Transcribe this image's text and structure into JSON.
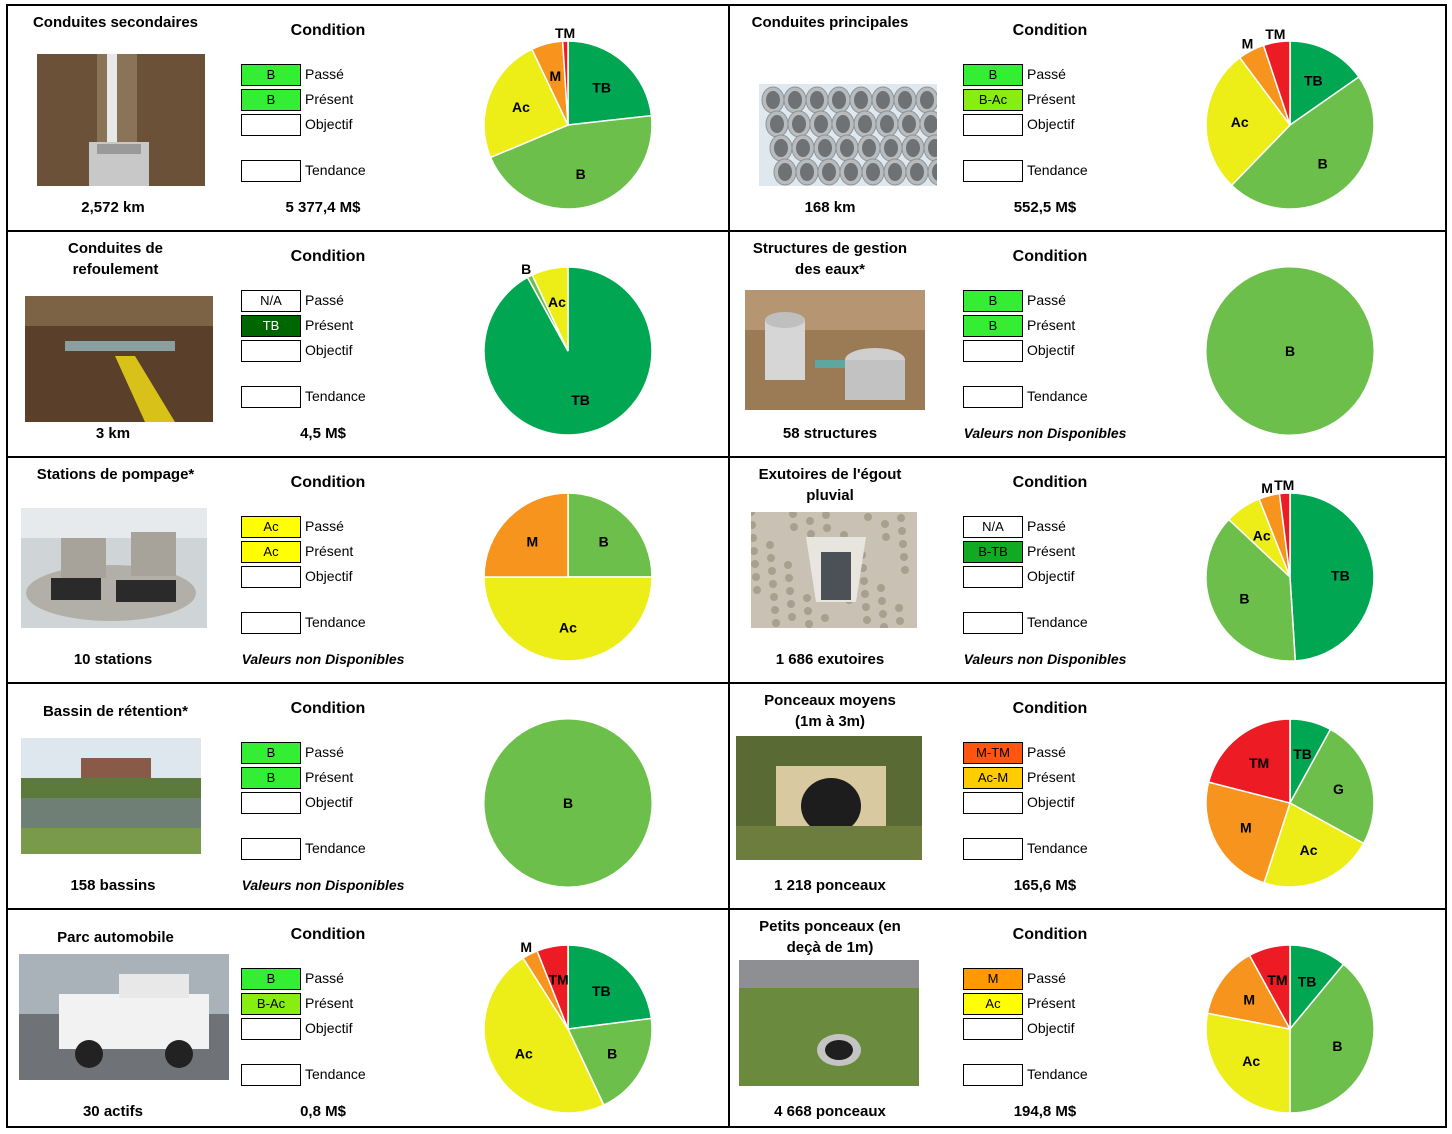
{
  "labels": {
    "condition": "Condition",
    "passe": "Passé",
    "present": "Présent",
    "objectif": "Objectif",
    "tendance": "Tendance"
  },
  "colors": {
    "TB": "#00a651",
    "B": "#6cbf4a",
    "Ac": "#eded17",
    "M": "#f7941d",
    "TM": "#ed1c24",
    "G": "#6cbf4a"
  },
  "panels": [
    {
      "id": "conduites-secondaires",
      "title": "Conduites secondaires",
      "quantity": "2,572 km",
      "value": "5 377,4 M$",
      "value_na": false,
      "condition": {
        "passe": {
          "text": "B",
          "color": "#33ee33",
          "fg": "#000"
        },
        "present": {
          "text": "B",
          "color": "#33ee33",
          "fg": "#000"
        },
        "objectif": {
          "text": "",
          "color": "#ffffff",
          "fg": "#000"
        },
        "tendance": {
          "text": "",
          "color": "#ffffff",
          "fg": "#000"
        }
      }
    },
    {
      "id": "conduites-principales",
      "title": "Conduites principales",
      "quantity": "168 km",
      "value": "552,5 M$",
      "value_na": false,
      "condition": {
        "passe": {
          "text": "B",
          "color": "#33ee33",
          "fg": "#000"
        },
        "present": {
          "text": "B-Ac",
          "color": "#88ee11",
          "fg": "#000"
        },
        "objectif": {
          "text": "",
          "color": "#ffffff",
          "fg": "#000"
        },
        "tendance": {
          "text": "",
          "color": "#ffffff",
          "fg": "#000"
        }
      }
    },
    {
      "id": "conduites-refoulement",
      "title": "Conduites de refoulement",
      "quantity": "3 km",
      "value": "4,5 M$",
      "value_na": false,
      "condition": {
        "passe": {
          "text": "N/A",
          "color": "#ffffff",
          "fg": "#000"
        },
        "present": {
          "text": "TB",
          "color": "#006600",
          "fg": "#ffffff"
        },
        "objectif": {
          "text": "",
          "color": "#ffffff",
          "fg": "#000"
        },
        "tendance": {
          "text": "",
          "color": "#ffffff",
          "fg": "#000"
        }
      }
    },
    {
      "id": "structures-gestion",
      "title": "Structures de gestion des eaux*",
      "quantity": "58 structures",
      "value": "Valeurs non Disponibles",
      "value_na": true,
      "condition": {
        "passe": {
          "text": "B",
          "color": "#33ee33",
          "fg": "#000"
        },
        "present": {
          "text": "B",
          "color": "#33ee33",
          "fg": "#000"
        },
        "objectif": {
          "text": "",
          "color": "#ffffff",
          "fg": "#000"
        },
        "tendance": {
          "text": "",
          "color": "#ffffff",
          "fg": "#000"
        }
      }
    },
    {
      "id": "stations-pompage",
      "title": "Stations de pompage*",
      "quantity": "10 stations",
      "value": "Valeurs non Disponibles",
      "value_na": true,
      "condition": {
        "passe": {
          "text": "Ac",
          "color": "#ffff00",
          "fg": "#000"
        },
        "present": {
          "text": "Ac",
          "color": "#ffff00",
          "fg": "#000"
        },
        "objectif": {
          "text": "",
          "color": "#ffffff",
          "fg": "#000"
        },
        "tendance": {
          "text": "",
          "color": "#ffffff",
          "fg": "#000"
        }
      }
    },
    {
      "id": "exutoires",
      "title": "Exutoires de l'égout pluvial",
      "quantity": "1 686 exutoires",
      "value": "Valeurs non Disponibles",
      "value_na": true,
      "condition": {
        "passe": {
          "text": "N/A",
          "color": "#ffffff",
          "fg": "#000"
        },
        "present": {
          "text": "B-TB",
          "color": "#11aa22",
          "fg": "#000"
        },
        "objectif": {
          "text": "",
          "color": "#ffffff",
          "fg": "#000"
        },
        "tendance": {
          "text": "",
          "color": "#ffffff",
          "fg": "#000"
        }
      }
    },
    {
      "id": "bassin-retention",
      "title": "Bassin de rétention*",
      "quantity": "158 bassins",
      "value": "Valeurs non Disponibles",
      "value_na": true,
      "condition": {
        "passe": {
          "text": "B",
          "color": "#33ee33",
          "fg": "#000"
        },
        "present": {
          "text": "B",
          "color": "#33ee33",
          "fg": "#000"
        },
        "objectif": {
          "text": "",
          "color": "#ffffff",
          "fg": "#000"
        },
        "tendance": {
          "text": "",
          "color": "#ffffff",
          "fg": "#000"
        }
      }
    },
    {
      "id": "ponceaux-moyens",
      "title": "Ponceaux moyens (1m à 3m)",
      "quantity": "1 218 ponceaux",
      "value": "165,6 M$",
      "value_na": false,
      "condition": {
        "passe": {
          "text": "M-TM",
          "color": "#ff5511",
          "fg": "#000"
        },
        "present": {
          "text": "Ac-M",
          "color": "#ffcc00",
          "fg": "#000"
        },
        "objectif": {
          "text": "",
          "color": "#ffffff",
          "fg": "#000"
        },
        "tendance": {
          "text": "",
          "color": "#ffffff",
          "fg": "#000"
        }
      }
    },
    {
      "id": "parc-automobile",
      "title": "Parc automobile",
      "quantity": "30 actifs",
      "value": "0,8 M$",
      "value_na": false,
      "condition": {
        "passe": {
          "text": "B",
          "color": "#33ee33",
          "fg": "#000"
        },
        "present": {
          "text": "B-Ac",
          "color": "#88ee11",
          "fg": "#000"
        },
        "objectif": {
          "text": "",
          "color": "#ffffff",
          "fg": "#000"
        },
        "tendance": {
          "text": "",
          "color": "#ffffff",
          "fg": "#000"
        }
      }
    },
    {
      "id": "petits-ponceaux",
      "title": "Petits ponceaux (en deçà de 1m)",
      "quantity": "4 668 ponceaux",
      "value": "194,8 M$",
      "value_na": false,
      "condition": {
        "passe": {
          "text": "M",
          "color": "#ff9900",
          "fg": "#000"
        },
        "present": {
          "text": "Ac",
          "color": "#ffff00",
          "fg": "#000"
        },
        "objectif": {
          "text": "",
          "color": "#ffffff",
          "fg": "#000"
        },
        "tendance": {
          "text": "",
          "color": "#ffffff",
          "fg": "#000"
        }
      }
    }
  ],
  "chart_data": [
    {
      "type": "pie",
      "panel": "Conduites secondaires",
      "categories": [
        "TB",
        "B",
        "Ac",
        "M",
        "TM"
      ],
      "values": [
        23,
        45,
        24,
        6,
        1
      ]
    },
    {
      "type": "pie",
      "panel": "Conduites principales",
      "categories": [
        "TB",
        "B",
        "Ac",
        "M",
        "TM"
      ],
      "values": [
        15,
        46,
        27,
        5,
        5
      ]
    },
    {
      "type": "pie",
      "panel": "Conduites de refoulement",
      "categories": [
        "TB",
        "B",
        "Ac"
      ],
      "values": [
        92,
        1,
        7
      ]
    },
    {
      "type": "pie",
      "panel": "Structures de gestion des eaux",
      "categories": [
        "B"
      ],
      "values": [
        100
      ]
    },
    {
      "type": "pie",
      "panel": "Stations de pompage",
      "categories": [
        "B",
        "Ac",
        "M"
      ],
      "values": [
        25,
        50,
        25
      ]
    },
    {
      "type": "pie",
      "panel": "Exutoires de l'égout pluvial",
      "categories": [
        "TB",
        "B",
        "Ac",
        "M",
        "TM"
      ],
      "values": [
        49,
        38,
        7,
        4,
        2
      ]
    },
    {
      "type": "pie",
      "panel": "Bassin de rétention",
      "categories": [
        "B"
      ],
      "values": [
        100
      ]
    },
    {
      "type": "pie",
      "panel": "Ponceaux moyens",
      "categories": [
        "TB",
        "G",
        "Ac",
        "M",
        "TM"
      ],
      "values": [
        8,
        25,
        22,
        24,
        21
      ]
    },
    {
      "type": "pie",
      "panel": "Parc automobile",
      "categories": [
        "TB",
        "B",
        "Ac",
        "M",
        "TM"
      ],
      "values": [
        23,
        20,
        48,
        3,
        6
      ]
    },
    {
      "type": "pie",
      "panel": "Petits ponceaux",
      "categories": [
        "TB",
        "B",
        "Ac",
        "M",
        "TM"
      ],
      "values": [
        11,
        39,
        28,
        14,
        8
      ]
    }
  ]
}
